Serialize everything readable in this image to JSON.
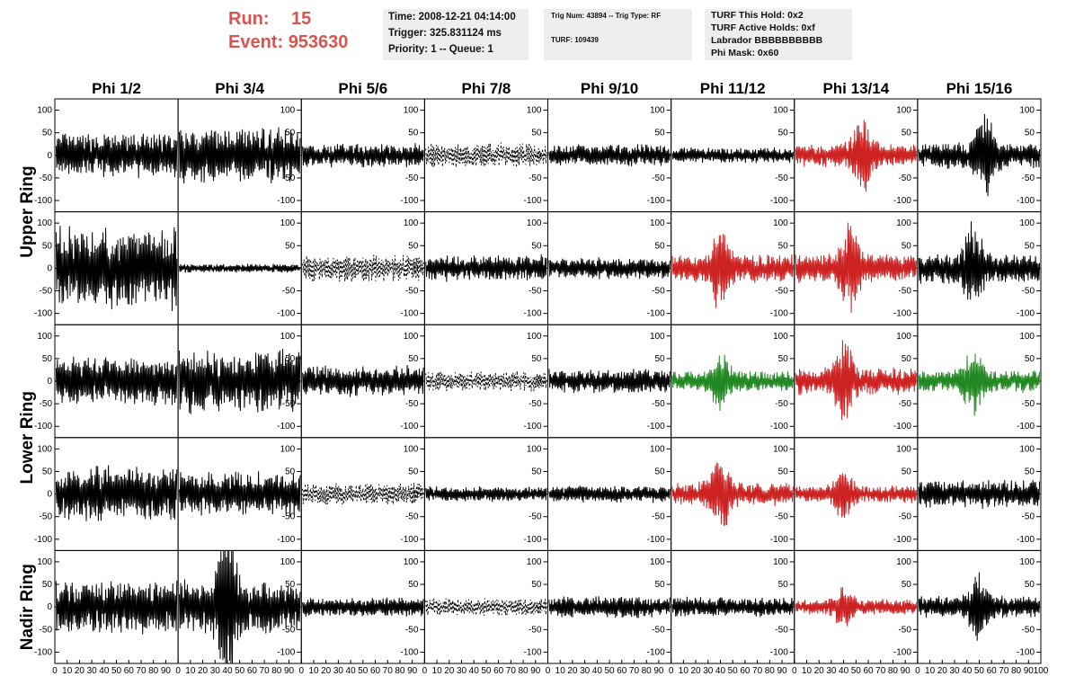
{
  "header": {
    "run_label": "Run:",
    "run_value": "15",
    "event_label": "Event:",
    "event_value": "953630",
    "accent_color": "#d9534f"
  },
  "info_box_1": {
    "line1": "Time: 2008-12-21 04:14:00",
    "line2": "Trigger: 325.831124 ms",
    "line3": "Priority: 1 -- Queue: 1"
  },
  "info_box_2": {
    "line1": "Trig Num: 43894 -- Trig Type: RF",
    "line2": "TURF: 109439"
  },
  "info_box_3": {
    "line1": "TURF This Hold: 0x2",
    "line2": "TURF Active Holds: 0xf",
    "line3": "Labrador BBBBBBBBBB",
    "line4": "Phi Mask: 0x60"
  },
  "chart_data": {
    "type": "line",
    "columns": [
      "Phi 1/2",
      "Phi 3/4",
      "Phi 5/6",
      "Phi 7/8",
      "Phi 9/10",
      "Phi 11/12",
      "Phi 13/14",
      "Phi 15/16"
    ],
    "row_labels": [
      "Upper Ring",
      "Lower Ring",
      "Nadir Ring"
    ],
    "ylim": [
      -125,
      125
    ],
    "yticks": [
      -100,
      -50,
      0,
      50,
      100
    ],
    "xlim": [
      0,
      100
    ],
    "xticks": [
      0,
      10,
      20,
      30,
      40,
      50,
      60,
      70,
      80,
      90,
      100
    ],
    "xtick_labels": [
      "0",
      "10",
      "20",
      "30",
      "40",
      "50",
      "60",
      "70",
      "80",
      "90",
      "100"
    ],
    "colors": {
      "normal": "#000000",
      "triggered": "#cc2222",
      "masked": "#228822"
    },
    "panels": [
      [
        {
          "amp": 40,
          "color": "normal",
          "style": "solid",
          "burst": null
        },
        {
          "amp": 50,
          "color": "normal",
          "style": "solid",
          "burst": null
        },
        {
          "amp": 22,
          "color": "normal",
          "style": "solid",
          "burst": null
        },
        {
          "amp": 22,
          "color": "normal",
          "style": "dashed",
          "burst": null
        },
        {
          "amp": 20,
          "color": "normal",
          "style": "solid",
          "burst": null
        },
        {
          "amp": 14,
          "color": "normal",
          "style": "solid",
          "burst": null
        },
        {
          "amp": 22,
          "color": "triggered",
          "style": "solid",
          "burst": 55
        },
        {
          "amp": 24,
          "color": "normal",
          "style": "solid",
          "burst": 55
        }
      ],
      [
        {
          "amp": 75,
          "color": "normal",
          "style": "solid",
          "burst": null
        },
        {
          "amp": 8,
          "color": "normal",
          "style": "solid",
          "burst": null
        },
        {
          "amp": 25,
          "color": "normal",
          "style": "dashed",
          "burst": null
        },
        {
          "amp": 24,
          "color": "normal",
          "style": "solid",
          "burst": null
        },
        {
          "amp": 20,
          "color": "normal",
          "style": "solid",
          "burst": null
        },
        {
          "amp": 26,
          "color": "triggered",
          "style": "solid",
          "burst": 40
        },
        {
          "amp": 26,
          "color": "triggered",
          "style": "solid",
          "burst": 45
        },
        {
          "amp": 28,
          "color": "normal",
          "style": "solid",
          "burst": 45
        }
      ],
      [
        {
          "amp": 45,
          "color": "normal",
          "style": "solid",
          "burst": null
        },
        {
          "amp": 60,
          "color": "normal",
          "style": "solid",
          "burst": null
        },
        {
          "amp": 28,
          "color": "normal",
          "style": "solid",
          "burst": null
        },
        {
          "amp": 18,
          "color": "normal",
          "style": "dashed",
          "burst": null
        },
        {
          "amp": 22,
          "color": "normal",
          "style": "solid",
          "burst": null
        },
        {
          "amp": 18,
          "color": "masked",
          "style": "solid",
          "burst": 40
        },
        {
          "amp": 26,
          "color": "triggered",
          "style": "solid",
          "burst": 40
        },
        {
          "amp": 20,
          "color": "masked",
          "style": "solid",
          "burst": 45
        }
      ],
      [
        {
          "amp": 50,
          "color": "normal",
          "style": "solid",
          "burst": null
        },
        {
          "amp": 40,
          "color": "normal",
          "style": "solid",
          "burst": null
        },
        {
          "amp": 20,
          "color": "normal",
          "style": "dashed",
          "burst": null
        },
        {
          "amp": 14,
          "color": "normal",
          "style": "solid",
          "burst": null
        },
        {
          "amp": 16,
          "color": "normal",
          "style": "solid",
          "burst": null
        },
        {
          "amp": 22,
          "color": "triggered",
          "style": "solid",
          "burst": 40
        },
        {
          "amp": 16,
          "color": "triggered",
          "style": "solid",
          "burst": 40
        },
        {
          "amp": 26,
          "color": "normal",
          "style": "solid",
          "burst": null
        }
      ],
      [
        {
          "amp": 50,
          "color": "normal",
          "style": "solid",
          "burst": null
        },
        {
          "amp": 50,
          "color": "normal",
          "style": "solid",
          "burst": 40
        },
        {
          "amp": 18,
          "color": "normal",
          "style": "solid",
          "burst": null
        },
        {
          "amp": 16,
          "color": "normal",
          "style": "dashed",
          "burst": null
        },
        {
          "amp": 20,
          "color": "normal",
          "style": "solid",
          "burst": null
        },
        {
          "amp": 18,
          "color": "normal",
          "style": "solid",
          "burst": null
        },
        {
          "amp": 14,
          "color": "triggered",
          "style": "solid",
          "burst": 40
        },
        {
          "amp": 20,
          "color": "normal",
          "style": "solid",
          "burst": 50
        }
      ]
    ]
  }
}
